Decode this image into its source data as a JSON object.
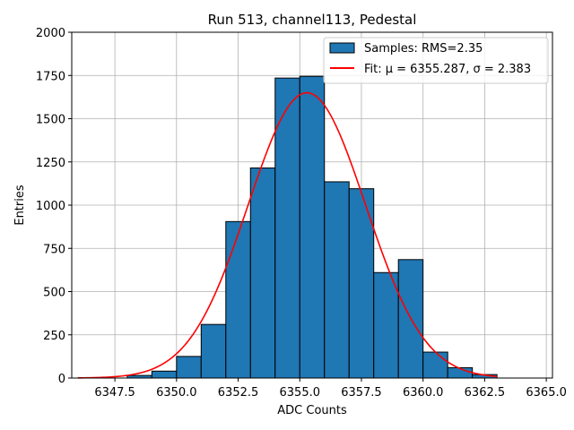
{
  "chart_data": {
    "type": "bar",
    "title": "Run 513, channel113, Pedestal",
    "xlabel": "ADC Counts",
    "ylabel": "Entries",
    "xlim": [
      6345.75,
      6365.25
    ],
    "ylim": [
      0,
      2000
    ],
    "grid": true,
    "legend_position": "top-right",
    "x_ticks": [
      6347.5,
      6350.0,
      6352.5,
      6355.0,
      6357.5,
      6360.0,
      6362.5,
      6365.0
    ],
    "x_tick_labels": [
      "6347.5",
      "6350.0",
      "6352.5",
      "6355.0",
      "6357.5",
      "6360.0",
      "6362.5",
      "6365.0"
    ],
    "y_ticks": [
      0,
      250,
      500,
      750,
      1000,
      1250,
      1500,
      1750,
      2000
    ],
    "y_tick_labels": [
      "0",
      "250",
      "500",
      "750",
      "1000",
      "1250",
      "1500",
      "1750",
      "2000"
    ],
    "bars": [
      {
        "x0": 6348,
        "x1": 6349,
        "value": 15
      },
      {
        "x0": 6349,
        "x1": 6350,
        "value": 40
      },
      {
        "x0": 6350,
        "x1": 6351,
        "value": 125
      },
      {
        "x0": 6351,
        "x1": 6352,
        "value": 310
      },
      {
        "x0": 6352,
        "x1": 6353,
        "value": 905
      },
      {
        "x0": 6353,
        "x1": 6354,
        "value": 1215
      },
      {
        "x0": 6354,
        "x1": 6355,
        "value": 1735
      },
      {
        "x0": 6355,
        "x1": 6356,
        "value": 1745
      },
      {
        "x0": 6356,
        "x1": 6357,
        "value": 1135
      },
      {
        "x0": 6357,
        "x1": 6358,
        "value": 1095
      },
      {
        "x0": 6358,
        "x1": 6359,
        "value": 610
      },
      {
        "x0": 6359,
        "x1": 6360,
        "value": 685
      },
      {
        "x0": 6360,
        "x1": 6361,
        "value": 150
      },
      {
        "x0": 6361,
        "x1": 6362,
        "value": 60
      },
      {
        "x0": 6362,
        "x1": 6363,
        "value": 20
      }
    ],
    "fit": {
      "type": "gaussian",
      "mu": 6355.287,
      "sigma": 2.383,
      "amplitude": 1650,
      "x_range": [
        6346,
        6363
      ]
    },
    "series": [
      {
        "name": "Samples: RMS=2.35",
        "color": "#1f77b4"
      },
      {
        "name": "Fit: μ = 6355.287, σ = 2.383",
        "color": "#ff0000"
      }
    ]
  }
}
